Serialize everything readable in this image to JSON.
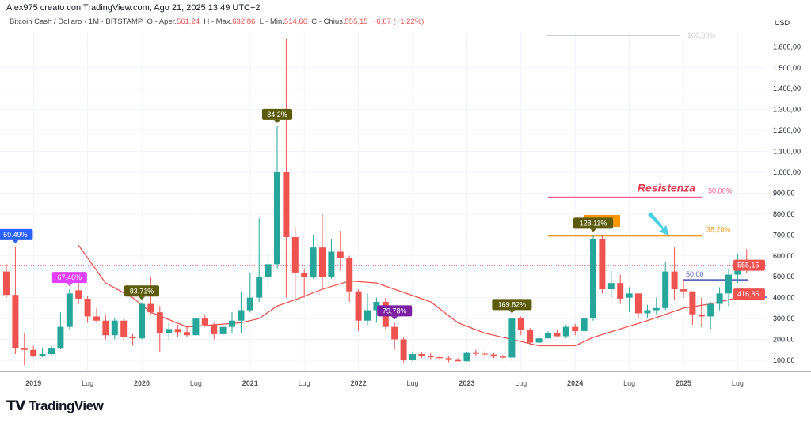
{
  "header": {
    "author_line": "Alex975 creato con TradingView.com, Ago 21, 2025 13:49 UTC+2"
  },
  "legend": {
    "symbol": "Bitcoin Cash / Dollaro · 1M · BITSTAMP",
    "open_label": "O - Aper.",
    "open": "561,24",
    "high_label": "H - Max.",
    "high": "632,86",
    "low_label": "L - Min.",
    "low": "514,66",
    "close_label": "C - Chius.",
    "close": "555,15",
    "change": "−6,87 (−1,22%)"
  },
  "logo": "TradingView",
  "colors": {
    "up": "#26a69a",
    "down": "#ef5350",
    "ma": "#ef5350",
    "fib100": "#b2b5be",
    "resistance": "#f06292",
    "fib382": "#f59b23",
    "blue_line": "#3f51b5",
    "arrow": "#4dd0e1"
  },
  "chart_data": {
    "type": "candlestick",
    "currency": "USD",
    "ylim": [
      0,
      1700
    ],
    "y_ticks": [
      "100,00",
      "200,00",
      "300,00",
      "400,00",
      "500,00",
      "600,00",
      "700,00",
      "800,00",
      "900,00",
      "1.000,00",
      "1.100,00",
      "1.200,00",
      "1.300,00",
      "1.400,00",
      "1.500,00",
      "1.600,00"
    ],
    "x_ticks": [
      {
        "label": "2019",
        "month": "2019-01"
      },
      {
        "label": "Lug",
        "month": "2019-07"
      },
      {
        "label": "2020",
        "month": "2020-01"
      },
      {
        "label": "Lug",
        "month": "2020-07"
      },
      {
        "label": "2021",
        "month": "2021-01"
      },
      {
        "label": "Lug",
        "month": "2021-07"
      },
      {
        "label": "2022",
        "month": "2022-01"
      },
      {
        "label": "Lug",
        "month": "2022-07"
      },
      {
        "label": "2023",
        "month": "2023-01"
      },
      {
        "label": "Lug",
        "month": "2023-07"
      },
      {
        "label": "2024",
        "month": "2024-01"
      },
      {
        "label": "Lug",
        "month": "2024-07"
      },
      {
        "label": "2025",
        "month": "2025-01"
      },
      {
        "label": "Lug",
        "month": "2025-07"
      }
    ],
    "start_month": "2018-10",
    "candles": [
      [
        525,
        560,
        400,
        413
      ],
      [
        413,
        645,
        130,
        160
      ],
      [
        160,
        230,
        75,
        150
      ],
      [
        150,
        170,
        115,
        120
      ],
      [
        120,
        160,
        115,
        130
      ],
      [
        130,
        170,
        125,
        160
      ],
      [
        160,
        330,
        155,
        260
      ],
      [
        260,
        440,
        250,
        420
      ],
      [
        435,
        510,
        370,
        395
      ],
      [
        395,
        410,
        280,
        310
      ],
      [
        310,
        350,
        280,
        290
      ],
      [
        290,
        320,
        200,
        220
      ],
      [
        220,
        300,
        200,
        290
      ],
      [
        290,
        300,
        190,
        210
      ],
      [
        210,
        225,
        170,
        205
      ],
      [
        205,
        375,
        200,
        370
      ],
      [
        370,
        500,
        320,
        330
      ],
      [
        330,
        360,
        140,
        230
      ],
      [
        230,
        280,
        200,
        250
      ],
      [
        250,
        270,
        210,
        235
      ],
      [
        235,
        260,
        210,
        220
      ],
      [
        220,
        310,
        215,
        300
      ],
      [
        300,
        320,
        260,
        270
      ],
      [
        270,
        280,
        200,
        225
      ],
      [
        225,
        280,
        210,
        260
      ],
      [
        260,
        330,
        230,
        290
      ],
      [
        290,
        430,
        230,
        340
      ],
      [
        340,
        520,
        330,
        400
      ],
      [
        400,
        780,
        380,
        500
      ],
      [
        500,
        620,
        440,
        560
      ],
      [
        560,
        1220,
        540,
        1000
      ],
      [
        1000,
        1640,
        400,
        690
      ],
      [
        690,
        740,
        380,
        520
      ],
      [
        520,
        540,
        400,
        500
      ],
      [
        500,
        700,
        490,
        640
      ],
      [
        640,
        800,
        440,
        500
      ],
      [
        500,
        680,
        490,
        620
      ],
      [
        620,
        720,
        530,
        590
      ],
      [
        590,
        600,
        380,
        430
      ],
      [
        430,
        440,
        240,
        290
      ],
      [
        290,
        420,
        270,
        340
      ],
      [
        340,
        400,
        280,
        380
      ],
      [
        380,
        400,
        250,
        260
      ],
      [
        260,
        280,
        150,
        200
      ],
      [
        200,
        210,
        90,
        100
      ],
      [
        100,
        140,
        95,
        130
      ],
      [
        130,
        140,
        110,
        120
      ],
      [
        120,
        135,
        105,
        115
      ],
      [
        115,
        125,
        100,
        110
      ],
      [
        110,
        120,
        90,
        105
      ],
      [
        105,
        110,
        95,
        95
      ],
      [
        95,
        140,
        95,
        135
      ],
      [
        135,
        150,
        120,
        132
      ],
      [
        132,
        145,
        110,
        128
      ],
      [
        128,
        135,
        110,
        118
      ],
      [
        118,
        125,
        110,
        113
      ],
      [
        113,
        310,
        95,
        300
      ],
      [
        300,
        310,
        220,
        245
      ],
      [
        245,
        255,
        170,
        185
      ],
      [
        185,
        225,
        175,
        205
      ],
      [
        205,
        240,
        205,
        230
      ],
      [
        230,
        245,
        210,
        215
      ],
      [
        215,
        270,
        205,
        260
      ],
      [
        260,
        275,
        220,
        240
      ],
      [
        240,
        300,
        225,
        300
      ],
      [
        300,
        700,
        290,
        680
      ],
      [
        680,
        700,
        420,
        440
      ],
      [
        440,
        530,
        400,
        470
      ],
      [
        470,
        510,
        370,
        395
      ],
      [
        400,
        450,
        330,
        420
      ],
      [
        420,
        420,
        300,
        325
      ],
      [
        325,
        365,
        300,
        340
      ],
      [
        340,
        400,
        320,
        350
      ],
      [
        350,
        570,
        340,
        525
      ],
      [
        525,
        640,
        390,
        440
      ],
      [
        440,
        490,
        400,
        430
      ],
      [
        430,
        430,
        270,
        320
      ],
      [
        320,
        400,
        260,
        310
      ],
      [
        310,
        380,
        250,
        370
      ],
      [
        370,
        450,
        340,
        420
      ],
      [
        420,
        540,
        360,
        510
      ],
      [
        510,
        610,
        470,
        580
      ],
      [
        561.24,
        632.86,
        514.66,
        555.15
      ]
    ],
    "moving_average": [
      [
        8,
        650
      ],
      [
        11,
        470
      ],
      [
        14,
        400
      ],
      [
        16,
        330
      ],
      [
        20,
        260
      ],
      [
        26,
        280
      ],
      [
        28,
        300
      ],
      [
        30,
        360
      ],
      [
        32,
        390
      ],
      [
        35,
        440
      ],
      [
        38,
        480
      ],
      [
        41,
        470
      ],
      [
        47,
        380
      ],
      [
        50,
        280
      ],
      [
        53,
        230
      ],
      [
        56,
        200
      ],
      [
        59,
        170
      ],
      [
        63,
        170
      ],
      [
        65,
        210
      ],
      [
        68,
        250
      ],
      [
        71,
        290
      ],
      [
        75,
        350
      ],
      [
        78,
        370
      ],
      [
        82,
        410
      ]
    ],
    "percent_labels": [
      {
        "text": "59.49%",
        "candle": 1,
        "color": "#2962ff"
      },
      {
        "text": "67.46%",
        "candle": 7,
        "color": "#e040fb"
      },
      {
        "text": "83.71%",
        "candle": 15,
        "color": "#5b5b0b"
      },
      {
        "text": "84.2%",
        "candle": 30,
        "color": "#5b5b0b"
      },
      {
        "text": "79.78%",
        "candle": 43,
        "color": "#7b1fa2"
      },
      {
        "text": "169.82%",
        "candle": 56,
        "color": "#5b5b0b"
      },
      {
        "text": "128.11%",
        "candle": 65,
        "color": "#5b5b0b"
      }
    ],
    "levels": [
      {
        "label": "100,00%",
        "price": 1655
      },
      {
        "label": "50,00%",
        "price": 880,
        "note": "Resistenza"
      },
      {
        "label": "38,20%",
        "price": 695
      },
      {
        "label": "50,00",
        "price": 485
      }
    ],
    "price_tags": [
      {
        "text": "555,15",
        "price": 555.15
      },
      {
        "text": "416,85",
        "price": 416.85
      }
    ]
  }
}
